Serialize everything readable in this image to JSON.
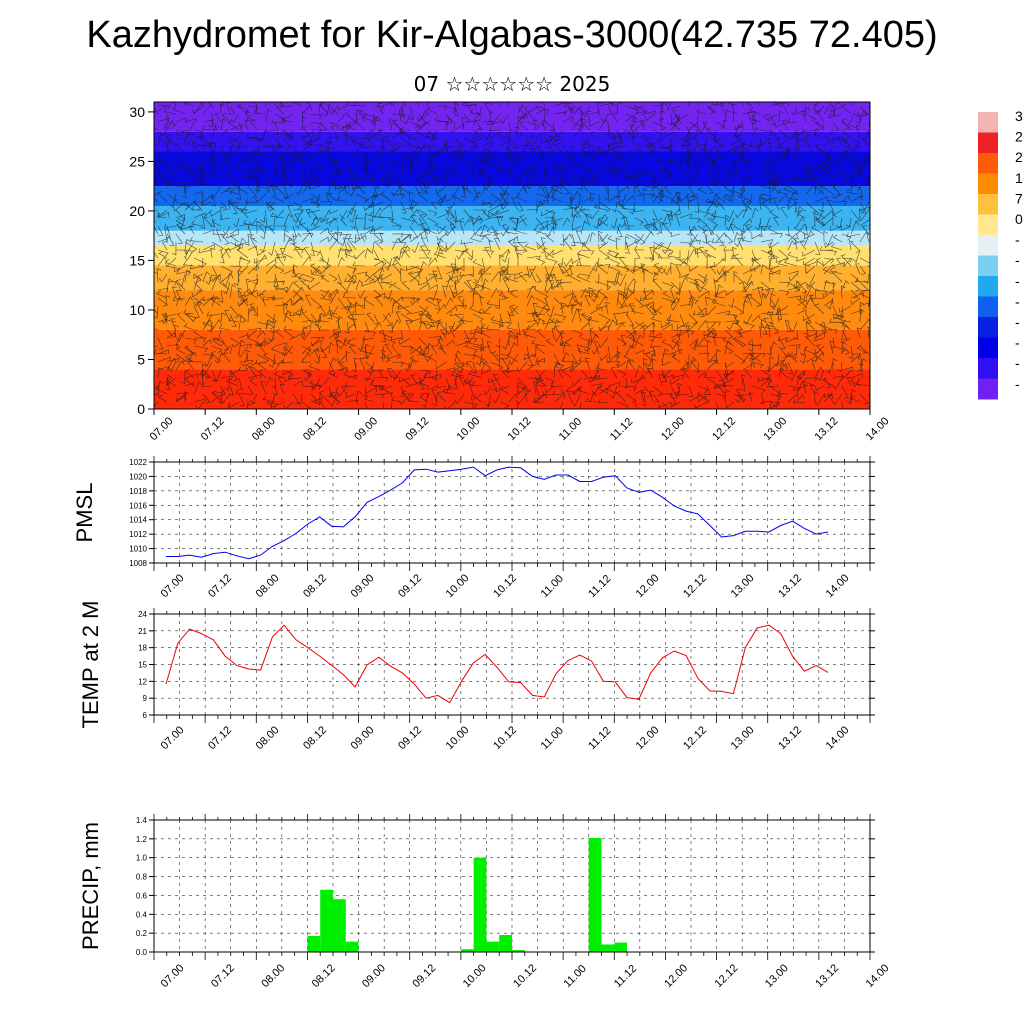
{
  "title": "Kazhydromet for Kir-Algabas-3000(42.735 72.405)",
  "subtitle": "07 ☆☆☆☆☆☆ 2025",
  "time_ticks": [
    "07.00",
    "07.12",
    "08.00",
    "08.12",
    "09.00",
    "09.12",
    "10.00",
    "10.12",
    "11.00",
    "11.12",
    "12.00",
    "12.12",
    "13.00",
    "13.12",
    "14.00"
  ],
  "colorbar": {
    "labels": [
      "3",
      "2",
      "2",
      "1",
      "7",
      "0",
      "-",
      "-",
      "-",
      "-",
      "-",
      "-",
      "-",
      "-"
    ],
    "colors": [
      "#f4b4b4",
      "#ee2222",
      "#ff5a0a",
      "#ff8c00",
      "#ffc040",
      "#ffe890",
      "#e6f0f4",
      "#7ad0f0",
      "#20a8f0",
      "#1060f0",
      "#0820e0",
      "#0000e8",
      "#3010f0",
      "#7020f0"
    ]
  },
  "chart_data": [
    {
      "type": "heatmap",
      "title": "",
      "xlabel": "",
      "ylabel": "",
      "ylim": [
        0,
        31
      ],
      "yticks": [
        0,
        5,
        10,
        15,
        20,
        25,
        30
      ],
      "layers": [
        {
          "y0": 0,
          "y1": 4,
          "color": "#ff2a0a"
        },
        {
          "y0": 4,
          "y1": 8,
          "color": "#ff5a08"
        },
        {
          "y0": 8,
          "y1": 12,
          "color": "#ff8a10"
        },
        {
          "y0": 12,
          "y1": 14.5,
          "color": "#ffb030"
        },
        {
          "y0": 14.5,
          "y1": 16.5,
          "color": "#ffe070"
        },
        {
          "y0": 16.5,
          "y1": 18,
          "color": "#b8e6f6"
        },
        {
          "y0": 18,
          "y1": 20.5,
          "color": "#3cb4f2"
        },
        {
          "y0": 20.5,
          "y1": 22.5,
          "color": "#1468ee"
        },
        {
          "y0": 22.5,
          "y1": 26,
          "color": "#0808e0"
        },
        {
          "y0": 26,
          "y1": 28,
          "color": "#3212ee"
        },
        {
          "y0": 28,
          "y1": 31,
          "color": "#7424f0"
        }
      ]
    },
    {
      "type": "line",
      "ylabel": "PMSL",
      "ylim": [
        1008,
        1022
      ],
      "yticks": [
        1008,
        1010,
        1012,
        1014,
        1016,
        1018,
        1020,
        1022
      ],
      "color": "#0000ee",
      "series": [
        {
          "values": [
            1008.9,
            1008.9,
            1009.1,
            1008.8,
            1009.3,
            1009.5,
            1009.0,
            1008.6,
            1009.1,
            1010.3,
            1011.1,
            1012.1,
            1013.4,
            1014.4,
            1013.1,
            1013.0,
            1014.4,
            1016.4,
            1017.2,
            1018.1,
            1019.1,
            1020.9,
            1021.0,
            1020.6,
            1020.8,
            1021.0,
            1021.3,
            1020.1,
            1020.9,
            1021.3,
            1021.2,
            1020.0,
            1019.6,
            1020.2,
            1020.2,
            1019.3,
            1019.3,
            1019.9,
            1020.1,
            1018.4,
            1017.8,
            1018.1,
            1017.1,
            1015.9,
            1015.2,
            1014.8,
            1013.2,
            1011.6,
            1011.8,
            1012.4,
            1012.4,
            1012.3,
            1013.2,
            1013.8,
            1012.8,
            1012.0,
            1012.3
          ]
        }
      ]
    },
    {
      "type": "line",
      "ylabel": "TEMP at 2 M",
      "ylim": [
        6,
        24
      ],
      "yticks": [
        6,
        9,
        12,
        15,
        18,
        21,
        24
      ],
      "color": "#ee0000",
      "series": [
        {
          "values": [
            11.5,
            18.8,
            21.3,
            20.5,
            19.4,
            16.5,
            14.8,
            14.2,
            14.0,
            19.9,
            22.0,
            19.4,
            18.0,
            16.5,
            14.9,
            13.2,
            11.0,
            14.9,
            16.3,
            14.7,
            13.5,
            11.5,
            9.0,
            9.5,
            8.2,
            12.0,
            15.3,
            16.8,
            14.5,
            11.9,
            11.8,
            9.5,
            9.2,
            13.4,
            15.7,
            16.7,
            15.6,
            12.0,
            11.9,
            9.1,
            8.8,
            13.5,
            16.2,
            17.4,
            16.6,
            12.5,
            10.3,
            10.2,
            9.8,
            18.0,
            21.5,
            22.0,
            20.5,
            16.5,
            13.8,
            14.8,
            13.6
          ]
        }
      ]
    },
    {
      "type": "bar",
      "ylabel": "PRECIP, mm",
      "ylim": [
        0,
        1.4
      ],
      "yticks": [
        "0.0",
        "0.2",
        "0.4",
        "0.6",
        "0.8",
        "1.0",
        "1.2",
        "1.4"
      ],
      "color": "#00ee00",
      "bar_start_hours": [
        36,
        39,
        42,
        45,
        72,
        75,
        78,
        81,
        84,
        102,
        105,
        108
      ],
      "values": [
        0.17,
        0.66,
        0.56,
        0.11,
        0.03,
        1.0,
        0.11,
        0.18,
        0.02,
        1.21,
        0.08,
        0.1
      ]
    }
  ]
}
